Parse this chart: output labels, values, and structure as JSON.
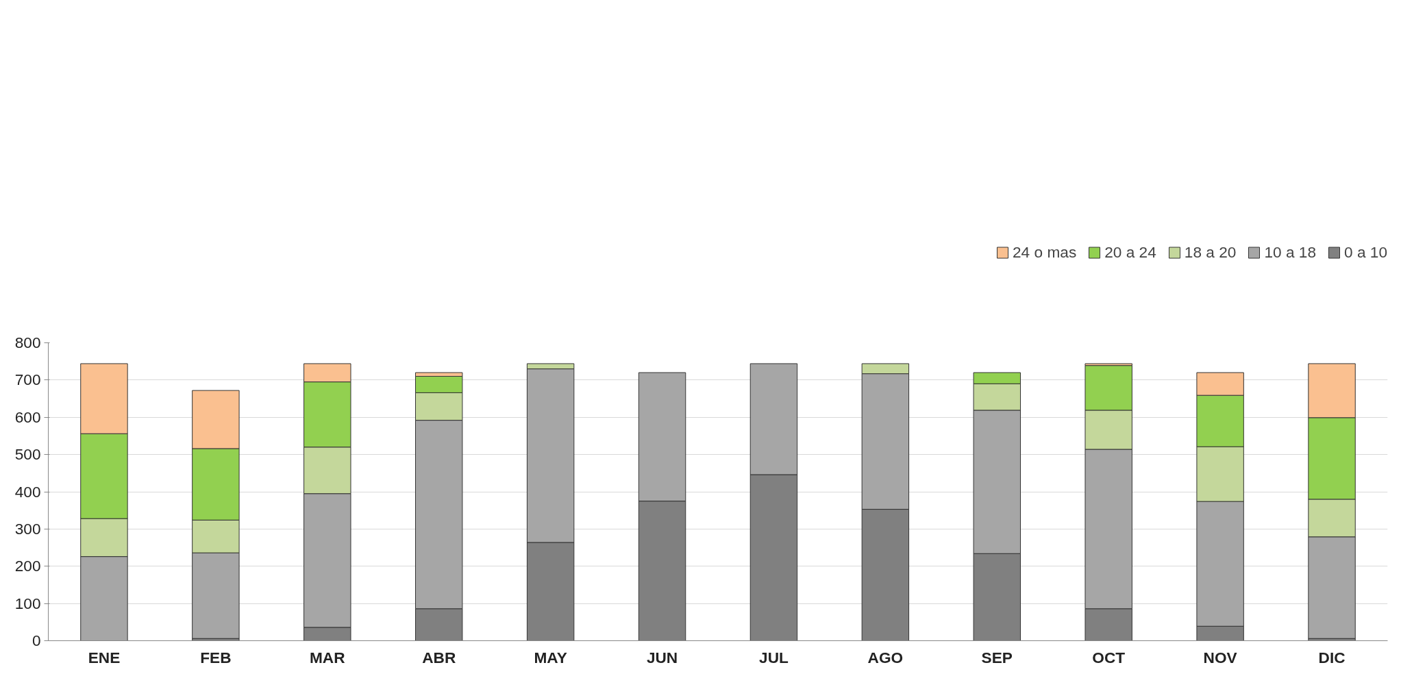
{
  "chart_data": {
    "type": "bar",
    "stacked": true,
    "categories": [
      "ENE",
      "FEB",
      "MAR",
      "ABR",
      "MAY",
      "JUN",
      "JUL",
      "AGO",
      "SEP",
      "OCT",
      "NOV",
      "DIC"
    ],
    "series": [
      {
        "name": "0 a 10",
        "color": "#808080",
        "values": [
          0,
          6,
          36,
          86,
          264,
          375,
          446,
          353,
          234,
          86,
          39,
          6
        ]
      },
      {
        "name": "10 a 18",
        "color": "#a6a6a6",
        "values": [
          226,
          230,
          359,
          506,
          466,
          345,
          298,
          364,
          385,
          428,
          335,
          273
        ]
      },
      {
        "name": "18 a 20",
        "color": "#c4d79b",
        "values": [
          102,
          88,
          125,
          74,
          14,
          0,
          0,
          27,
          71,
          105,
          147,
          101
        ]
      },
      {
        "name": "20 a 24",
        "color": "#92d050",
        "values": [
          228,
          192,
          175,
          44,
          0,
          0,
          0,
          0,
          30,
          120,
          138,
          219
        ]
      },
      {
        "name": "24 o mas",
        "color": "#fac090",
        "values": [
          188,
          156,
          49,
          10,
          0,
          0,
          0,
          0,
          0,
          5,
          61,
          145
        ]
      }
    ],
    "ylim": [
      0,
      800
    ],
    "yticks": [
      0,
      100,
      200,
      300,
      400,
      500,
      600,
      700,
      800
    ],
    "grid": "y",
    "legend": "top right"
  }
}
